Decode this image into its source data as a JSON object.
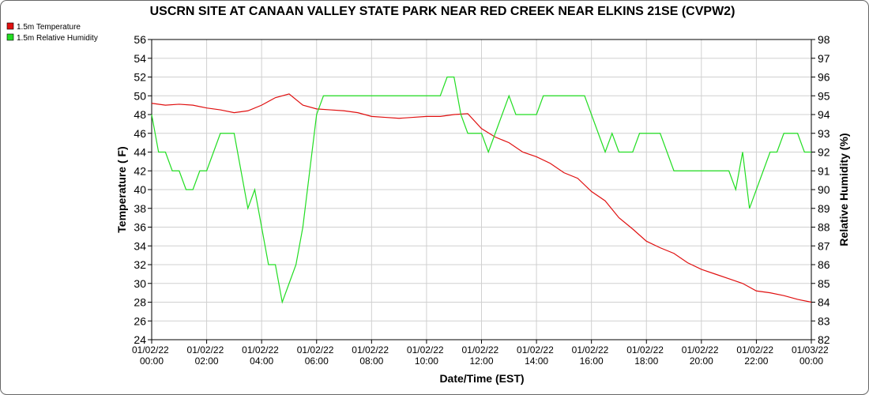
{
  "chart_data": {
    "type": "line",
    "title": "USCRN SITE AT CANAAN VALLEY STATE PARK NEAR RED CREEK NEAR ELKINS 21SE (CVPW2)",
    "xlabel": "Date/Time (EST)",
    "ylabel": "Temperature ( F)",
    "y2label": "Relative Humidity (%)",
    "xlim": [
      "01/02/22 00:00",
      "01/03/22 00:00"
    ],
    "xticks": [
      "01/02/22 00:00",
      "01/02/22 02:00",
      "01/02/22 04:00",
      "01/02/22 06:00",
      "01/02/22 08:00",
      "01/02/22 10:00",
      "01/02/22 12:00",
      "01/02/22 14:00",
      "01/02/22 16:00",
      "01/02/22 18:00",
      "01/02/22 20:00",
      "01/02/22 22:00",
      "01/03/22 00:00"
    ],
    "ylim": [
      24,
      56
    ],
    "yticks": [
      24,
      26,
      28,
      30,
      32,
      34,
      36,
      38,
      40,
      42,
      44,
      46,
      48,
      50,
      52,
      54,
      56
    ],
    "y2lim": [
      82,
      98
    ],
    "y2ticks": [
      82,
      83,
      84,
      85,
      86,
      87,
      88,
      89,
      90,
      91,
      92,
      93,
      94,
      95,
      96,
      97,
      98
    ],
    "grid": true,
    "legend": "upper left",
    "series": [
      {
        "name": "1.5m Temperature",
        "color": "#e01010",
        "x": [
          "01/02/22 00:00",
          "01/02/22 00:30",
          "01/02/22 01:00",
          "01/02/22 01:30",
          "01/02/22 02:00",
          "01/02/22 02:30",
          "01/02/22 03:00",
          "01/02/22 03:30",
          "01/02/22 04:00",
          "01/02/22 04:30",
          "01/02/22 05:00",
          "01/02/22 05:30",
          "01/02/22 06:00",
          "01/02/22 06:30",
          "01/02/22 07:00",
          "01/02/22 07:30",
          "01/02/22 08:00",
          "01/02/22 08:30",
          "01/02/22 09:00",
          "01/02/22 09:30",
          "01/02/22 10:00",
          "01/02/22 10:30",
          "01/02/22 11:00",
          "01/02/22 11:30",
          "01/02/22 12:00",
          "01/02/22 12:30",
          "01/02/22 13:00",
          "01/02/22 13:30",
          "01/02/22 14:00",
          "01/02/22 14:30",
          "01/02/22 15:00",
          "01/02/22 15:30",
          "01/02/22 16:00",
          "01/02/22 16:30",
          "01/02/22 17:00",
          "01/02/22 17:30",
          "01/02/22 18:00",
          "01/02/22 18:30",
          "01/02/22 19:00",
          "01/02/22 19:30",
          "01/02/22 20:00",
          "01/02/22 20:30",
          "01/02/22 21:00",
          "01/02/22 21:30",
          "01/02/22 22:00",
          "01/02/22 22:30",
          "01/02/22 23:00",
          "01/02/22 23:30",
          "01/03/22 00:00"
        ],
        "values": [
          49.2,
          49.0,
          49.1,
          49.0,
          48.7,
          48.5,
          48.2,
          48.4,
          49.0,
          49.8,
          50.2,
          49.0,
          48.6,
          48.5,
          48.4,
          48.2,
          47.8,
          47.7,
          47.6,
          47.7,
          47.8,
          47.8,
          48.0,
          48.1,
          46.5,
          45.6,
          45.0,
          44.0,
          43.5,
          42.8,
          41.8,
          41.2,
          39.8,
          38.8,
          37.0,
          35.8,
          34.5,
          33.8,
          33.2,
          32.2,
          31.5,
          31.0,
          30.5,
          30.0,
          29.2,
          29.0,
          28.7,
          28.3,
          28.0
        ]
      },
      {
        "name": "1.5m Relative Humidity",
        "color": "#22dd22",
        "axis": "y2",
        "x": [
          "01/02/22 00:00",
          "01/02/22 00:15",
          "01/02/22 00:30",
          "01/02/22 00:45",
          "01/02/22 01:00",
          "01/02/22 01:15",
          "01/02/22 01:30",
          "01/02/22 01:45",
          "01/02/22 02:00",
          "01/02/22 02:15",
          "01/02/22 02:30",
          "01/02/22 02:45",
          "01/02/22 03:00",
          "01/02/22 03:15",
          "01/02/22 03:30",
          "01/02/22 03:45",
          "01/02/22 04:00",
          "01/02/22 04:15",
          "01/02/22 04:30",
          "01/02/22 04:45",
          "01/02/22 05:00",
          "01/02/22 05:15",
          "01/02/22 05:30",
          "01/02/22 05:45",
          "01/02/22 06:00",
          "01/02/22 06:15",
          "01/02/22 06:30",
          "01/02/22 06:45",
          "01/02/22 07:00",
          "01/02/22 07:15",
          "01/02/22 07:30",
          "01/02/22 07:45",
          "01/02/22 08:00",
          "01/02/22 08:15",
          "01/02/22 08:30",
          "01/02/22 08:45",
          "01/02/22 09:00",
          "01/02/22 09:15",
          "01/02/22 09:30",
          "01/02/22 09:45",
          "01/02/22 10:00",
          "01/02/22 10:15",
          "01/02/22 10:30",
          "01/02/22 10:45",
          "01/02/22 11:00",
          "01/02/22 11:15",
          "01/02/22 11:30",
          "01/02/22 11:45",
          "01/02/22 12:00",
          "01/02/22 12:15",
          "01/02/22 12:30",
          "01/02/22 12:45",
          "01/02/22 13:00",
          "01/02/22 13:15",
          "01/02/22 13:30",
          "01/02/22 13:45",
          "01/02/22 14:00",
          "01/02/22 14:15",
          "01/02/22 14:30",
          "01/02/22 14:45",
          "01/02/22 15:00",
          "01/02/22 15:15",
          "01/02/22 15:30",
          "01/02/22 15:45",
          "01/02/22 16:00",
          "01/02/22 16:15",
          "01/02/22 16:30",
          "01/02/22 16:45",
          "01/02/22 17:00",
          "01/02/22 17:15",
          "01/02/22 17:30",
          "01/02/22 17:45",
          "01/02/22 18:00",
          "01/02/22 18:15",
          "01/02/22 18:30",
          "01/02/22 18:45",
          "01/02/22 19:00",
          "01/02/22 19:15",
          "01/02/22 19:30",
          "01/02/22 19:45",
          "01/02/22 20:00",
          "01/02/22 20:15",
          "01/02/22 20:30",
          "01/02/22 20:45",
          "01/02/22 21:00",
          "01/02/22 21:15",
          "01/02/22 21:30",
          "01/02/22 21:45",
          "01/02/22 22:00",
          "01/02/22 22:15",
          "01/02/22 22:30",
          "01/02/22 22:45",
          "01/02/22 23:00",
          "01/02/22 23:15",
          "01/02/22 23:30",
          "01/02/22 23:45",
          "01/03/22 00:00"
        ],
        "values": [
          94,
          92,
          92,
          91,
          91,
          90,
          90,
          91,
          91,
          92,
          93,
          93,
          93,
          91,
          89,
          90,
          88,
          86,
          86,
          84,
          85,
          86,
          88,
          91,
          94,
          95,
          95,
          95,
          95,
          95,
          95,
          95,
          95,
          95,
          95,
          95,
          95,
          95,
          95,
          95,
          95,
          95,
          95,
          96,
          96,
          94,
          93,
          93,
          93,
          92,
          93,
          94,
          95,
          94,
          94,
          94,
          94,
          95,
          95,
          95,
          95,
          95,
          95,
          95,
          94,
          93,
          92,
          93,
          92,
          92,
          92,
          93,
          93,
          93,
          93,
          92,
          91,
          91,
          91,
          91,
          91,
          91,
          91,
          91,
          91,
          90,
          92,
          89,
          90,
          91,
          92,
          92,
          93,
          93,
          93,
          92,
          92
        ]
      }
    ]
  }
}
